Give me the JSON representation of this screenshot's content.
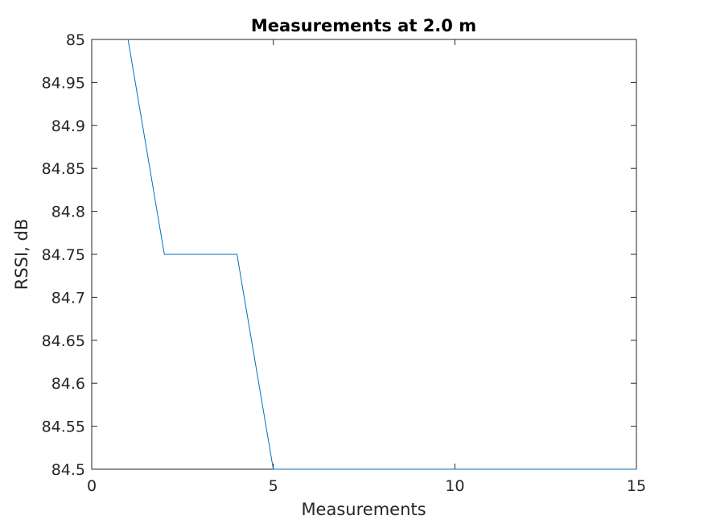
{
  "chart_data": {
    "type": "line",
    "title": "Measurements at 2.0 m",
    "xlabel": "Measurements",
    "ylabel": "RSSI, dB",
    "xlim": [
      0,
      15
    ],
    "ylim": [
      84.5,
      85
    ],
    "xticks": [
      "0",
      "5",
      "10",
      "15"
    ],
    "yticks": [
      "84.5",
      "84.55",
      "84.6",
      "84.65",
      "84.7",
      "84.75",
      "84.8",
      "84.85",
      "84.9",
      "84.95",
      "85"
    ],
    "grid": false,
    "series": [
      {
        "color": "#0072bd",
        "x": [
          1,
          2,
          3,
          4,
          5,
          6,
          7,
          8,
          9,
          10,
          11,
          12,
          13,
          14,
          15
        ],
        "y": [
          85,
          84.75,
          84.75,
          84.75,
          84.5,
          84.5,
          84.5,
          84.5,
          84.5,
          84.5,
          84.5,
          84.5,
          84.5,
          84.5,
          84.5
        ]
      }
    ]
  }
}
